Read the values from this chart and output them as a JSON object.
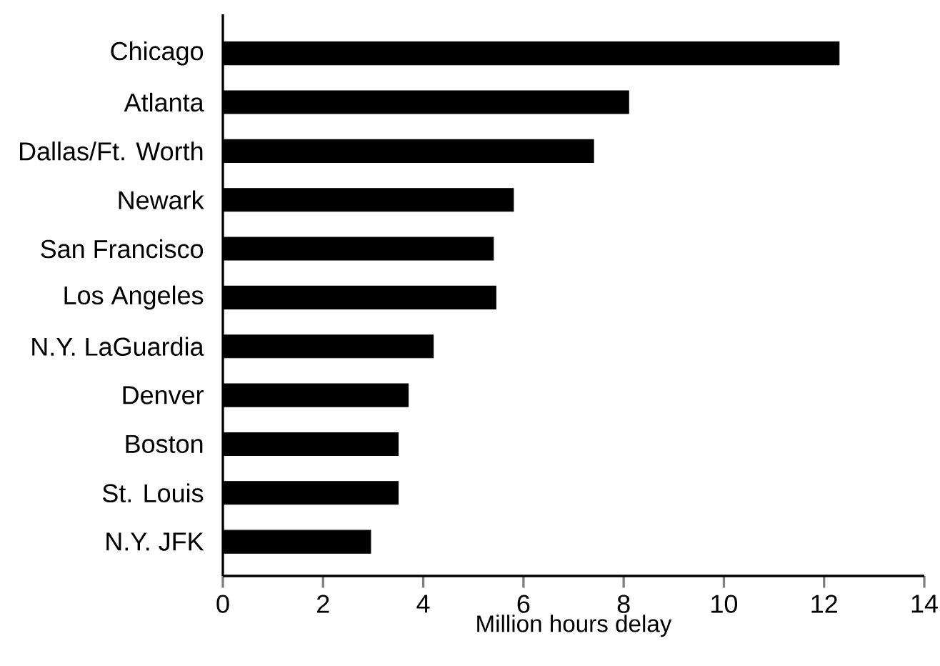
{
  "chart_data": {
    "type": "bar",
    "orientation": "horizontal",
    "xlabel": "Million hours delay",
    "categories": [
      "Chicago",
      "Atlanta",
      "Dallas/Ft. Worth",
      "Newark",
      "San Francisco",
      "Los Angeles",
      "N.Y. LaGuardia",
      "Denver",
      "Boston",
      "St. Louis",
      "N.Y. JFK"
    ],
    "values": [
      12.3,
      8.1,
      7.4,
      5.8,
      5.4,
      5.45,
      4.2,
      3.7,
      3.5,
      3.5,
      2.95
    ],
    "color": "#000000",
    "xlim": [
      0,
      14
    ],
    "xticks": [
      0,
      2,
      4,
      6,
      8,
      10,
      12,
      14
    ]
  }
}
